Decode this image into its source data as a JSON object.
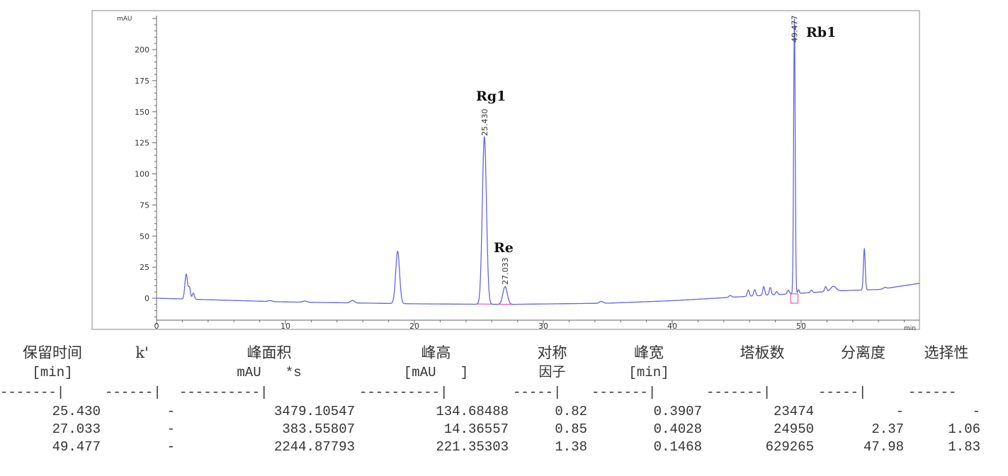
{
  "chart_data": {
    "type": "line",
    "ylabel": "mAU",
    "xlabel": "min",
    "xlim": [
      0,
      59.2
    ],
    "ylim": [
      -17,
      228
    ],
    "xticks": [
      0,
      10,
      20,
      30,
      40,
      50
    ],
    "yticks": [
      0,
      25,
      50,
      75,
      100,
      125,
      150,
      175,
      200
    ],
    "line_color": "#6666dd",
    "baseline_color": "#e040a0",
    "baseline": [
      [
        0,
        0
      ],
      [
        5,
        -1.5
      ],
      [
        10,
        -3
      ],
      [
        20,
        -4.5
      ],
      [
        27,
        -5
      ],
      [
        35,
        -4
      ],
      [
        40,
        -2
      ],
      [
        45,
        1
      ],
      [
        50,
        4
      ],
      [
        53,
        6
      ],
      [
        56,
        7
      ],
      [
        59.2,
        12
      ]
    ],
    "peaks": [
      {
        "rt": 2.3,
        "height": 20,
        "width": 0.1
      },
      {
        "rt": 2.55,
        "height": 9,
        "width": 0.08
      },
      {
        "rt": 2.85,
        "height": 5,
        "width": 0.08
      },
      {
        "rt": 8.8,
        "height": 0.7,
        "width": 0.15
      },
      {
        "rt": 11.5,
        "height": 1,
        "width": 0.15
      },
      {
        "rt": 15.2,
        "height": 2,
        "width": 0.15
      },
      {
        "rt": 18.7,
        "height": 42,
        "width": 0.15
      },
      {
        "rt": 25.43,
        "height": 134.7,
        "width": 0.16
      },
      {
        "rt": 27.033,
        "height": 14.4,
        "width": 0.17
      },
      {
        "rt": 34.5,
        "height": 1.5,
        "width": 0.15
      },
      {
        "rt": 44.5,
        "height": 1.5,
        "width": 0.1
      },
      {
        "rt": 45.9,
        "height": 5,
        "width": 0.08
      },
      {
        "rt": 46.4,
        "height": 5,
        "width": 0.08
      },
      {
        "rt": 47.1,
        "height": 7,
        "width": 0.08
      },
      {
        "rt": 47.6,
        "height": 6,
        "width": 0.08
      },
      {
        "rt": 48.1,
        "height": 2.5,
        "width": 0.08
      },
      {
        "rt": 49.0,
        "height": 3,
        "width": 0.08
      },
      {
        "rt": 49.477,
        "height": 221.4,
        "width": 0.06
      },
      {
        "rt": 49.8,
        "height": 3,
        "width": 0.06
      },
      {
        "rt": 50.8,
        "height": 2,
        "width": 0.08
      },
      {
        "rt": 51.9,
        "height": 4,
        "width": 0.08
      },
      {
        "rt": 52.5,
        "height": 4,
        "width": 0.2
      },
      {
        "rt": 54.9,
        "height": 33,
        "width": 0.07
      },
      {
        "rt": 56.5,
        "height": 1,
        "width": 0.1
      }
    ],
    "peak_labels": [
      {
        "rt": "25.430",
        "name": "Rg1"
      },
      {
        "rt": "27.033",
        "name": "Re"
      },
      {
        "rt": "49.477",
        "name": "Rb1"
      }
    ]
  },
  "table": {
    "headers1": [
      "保留时间",
      "k'",
      "峰面积",
      "峰高",
      "对称",
      "峰宽",
      "塔板数",
      "分离度",
      "选择性"
    ],
    "headers2": [
      "[min]",
      "",
      "mAU   *s",
      "[mAU   ]",
      "因子",
      "[min]",
      "",
      "",
      ""
    ],
    "dashes": [
      "-------|",
      "------|",
      "----------|",
      "----------|",
      "-----|",
      "-------|",
      "-------|",
      "-----|",
      "------"
    ],
    "rows": [
      [
        "25.430",
        "-",
        "3479.10547",
        "134.68488",
        "0.82",
        "0.3907",
        "23474",
        "-",
        "-"
      ],
      [
        "27.033",
        "-",
        "383.55807",
        "14.36557",
        "0.85",
        "0.4028",
        "24950",
        "2.37",
        "1.06"
      ],
      [
        "49.477",
        "-",
        "2244.87793",
        "221.35303",
        "1.38",
        "0.1468",
        "629265",
        "47.98",
        "1.83"
      ]
    ]
  }
}
